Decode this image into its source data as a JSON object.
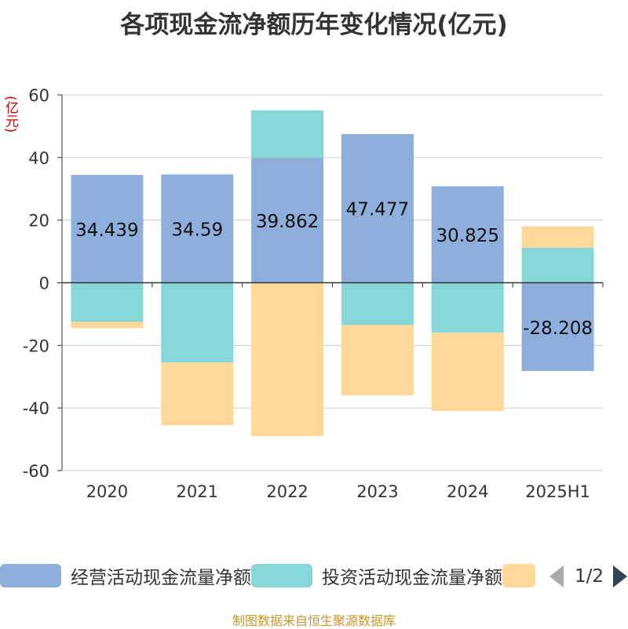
{
  "title": "各项现金流净额历年变化情况(亿元)",
  "unit_label": "(亿元)",
  "source": "制图数据来自恒生聚源数据库",
  "legend": {
    "items": [
      {
        "label": "经营活动现金流量净额",
        "color": "#8eaedb"
      },
      {
        "label": "投资活动现金流量净额",
        "color": "#87d6d8"
      },
      {
        "label": "",
        "color": "#ffd899"
      }
    ],
    "pager": "1/2"
  },
  "chart_data": {
    "type": "bar",
    "stacked": true,
    "categories": [
      "2020",
      "2021",
      "2022",
      "2023",
      "2024",
      "2025H1"
    ],
    "ylim": [
      -60,
      60
    ],
    "yticks": [
      60,
      40,
      20,
      0,
      -20,
      -40,
      -60
    ],
    "grid": true,
    "legend_position": "bottom",
    "series": [
      {
        "name": "经营活动现金流量净额",
        "color": "#8eaedb",
        "values": [
          34.439,
          34.59,
          39.862,
          47.477,
          30.825,
          -28.208
        ],
        "labels": [
          "34.439",
          "34.59",
          "39.862",
          "47.477",
          "30.825",
          "-28.208"
        ]
      },
      {
        "name": "投资活动现金流量净额",
        "color": "#87d6d8",
        "values": [
          -12.5,
          -25.5,
          15.2,
          -13.5,
          -16.0,
          11.2
        ]
      },
      {
        "color": "#ffd899",
        "values": [
          -2.0,
          -20.0,
          -49.0,
          -22.5,
          -25.0,
          6.8
        ]
      }
    ]
  }
}
